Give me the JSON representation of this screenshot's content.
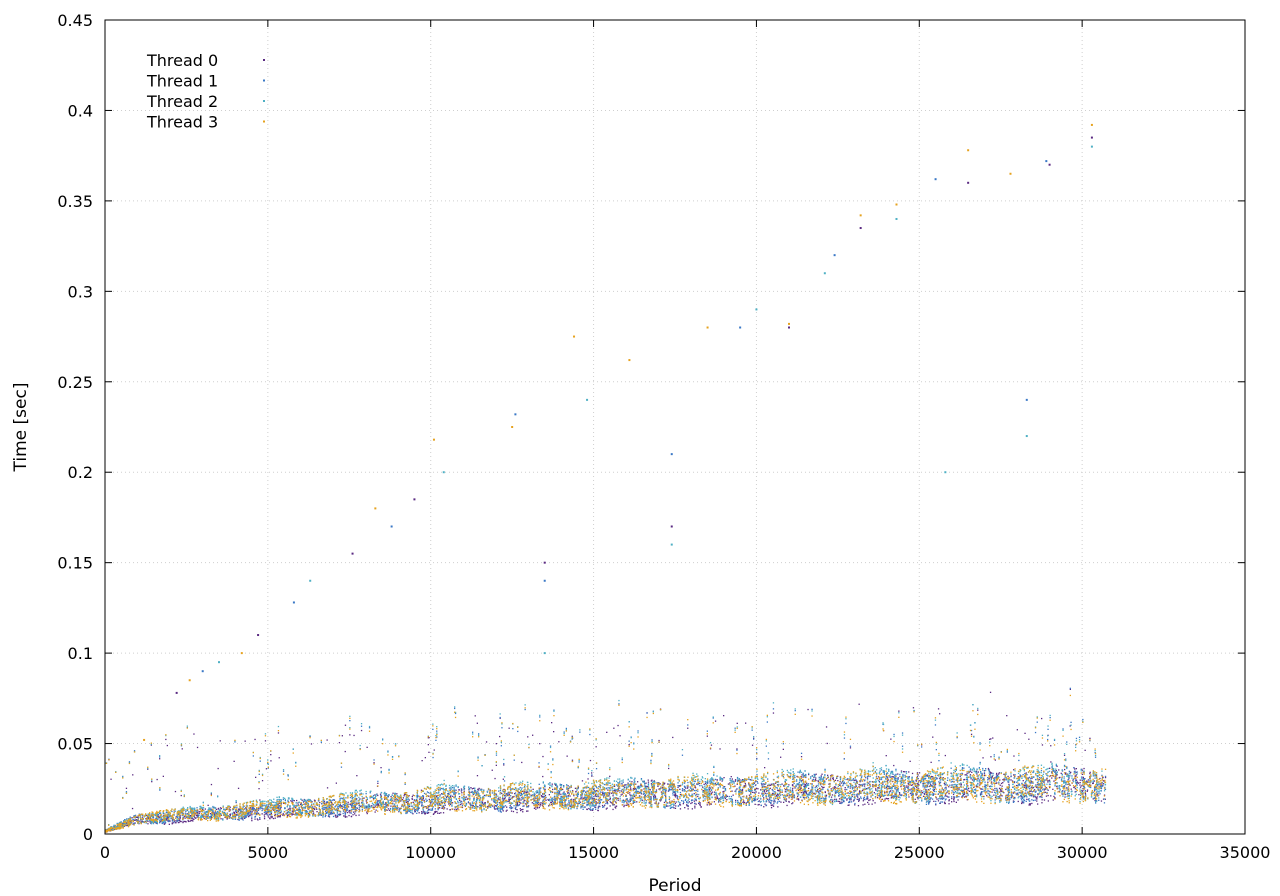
{
  "chart_data": {
    "type": "scatter",
    "title": "",
    "xlabel": "Period",
    "ylabel": "Time [sec]",
    "xlim": [
      0,
      35000
    ],
    "ylim": [
      0,
      0.45
    ],
    "xticks": [
      0,
      5000,
      10000,
      15000,
      20000,
      25000,
      30000,
      35000
    ],
    "yticks": [
      0,
      0.05,
      0.1,
      0.15,
      0.2,
      0.25,
      0.3,
      0.35,
      0.4,
      0.45
    ],
    "xtick_labels": [
      "0",
      "5000",
      "10000",
      "15000",
      "20000",
      "25000",
      "30000",
      "35000"
    ],
    "ytick_labels": [
      "0",
      "0.05",
      "0.1",
      "0.15",
      "0.2",
      "0.25",
      "0.3",
      "0.35",
      "0.4",
      "0.45"
    ],
    "grid": true,
    "legend_position": "top-left",
    "data_extent_x": [
      0,
      30700
    ],
    "series": [
      {
        "name": "Thread 0",
        "color": "#5a2a82",
        "trend": [
          [
            0,
            0.002
          ],
          [
            1000,
            0.008
          ],
          [
            5000,
            0.013
          ],
          [
            10000,
            0.018
          ],
          [
            15000,
            0.021
          ],
          [
            20000,
            0.024
          ],
          [
            25000,
            0.026
          ],
          [
            30700,
            0.027
          ]
        ],
        "outliers": [
          [
            2200,
            0.078
          ],
          [
            4700,
            0.11
          ],
          [
            7600,
            0.155
          ],
          [
            9500,
            0.185
          ],
          [
            13500,
            0.15
          ],
          [
            17400,
            0.17
          ],
          [
            21000,
            0.28
          ],
          [
            23200,
            0.335
          ],
          [
            26500,
            0.36
          ],
          [
            29000,
            0.37
          ],
          [
            30300,
            0.385
          ]
        ]
      },
      {
        "name": "Thread 1",
        "color": "#3a78c6",
        "trend": [
          [
            0,
            0.002
          ],
          [
            1000,
            0.009
          ],
          [
            5000,
            0.014
          ],
          [
            10000,
            0.019
          ],
          [
            15000,
            0.022
          ],
          [
            20000,
            0.025
          ],
          [
            25000,
            0.027
          ],
          [
            30700,
            0.028
          ]
        ],
        "outliers": [
          [
            3000,
            0.09
          ],
          [
            5800,
            0.128
          ],
          [
            8800,
            0.17
          ],
          [
            12600,
            0.232
          ],
          [
            13500,
            0.14
          ],
          [
            17400,
            0.21
          ],
          [
            19500,
            0.28
          ],
          [
            22400,
            0.32
          ],
          [
            25500,
            0.362
          ],
          [
            28300,
            0.24
          ],
          [
            28900,
            0.372
          ]
        ]
      },
      {
        "name": "Thread 2",
        "color": "#4fb0c4",
        "trend": [
          [
            0,
            0.002
          ],
          [
            1000,
            0.009
          ],
          [
            5000,
            0.015
          ],
          [
            10000,
            0.02
          ],
          [
            15000,
            0.023
          ],
          [
            20000,
            0.026
          ],
          [
            25000,
            0.028
          ],
          [
            30700,
            0.029
          ]
        ],
        "outliers": [
          [
            3500,
            0.095
          ],
          [
            6300,
            0.14
          ],
          [
            10400,
            0.2
          ],
          [
            13500,
            0.1
          ],
          [
            14800,
            0.24
          ],
          [
            17400,
            0.16
          ],
          [
            20000,
            0.29
          ],
          [
            22100,
            0.31
          ],
          [
            24300,
            0.34
          ],
          [
            25800,
            0.2
          ],
          [
            28300,
            0.22
          ],
          [
            30300,
            0.38
          ]
        ]
      },
      {
        "name": "Thread 3",
        "color": "#e6a21e",
        "trend": [
          [
            0,
            0.002
          ],
          [
            1000,
            0.009
          ],
          [
            5000,
            0.014
          ],
          [
            10000,
            0.019
          ],
          [
            15000,
            0.022
          ],
          [
            20000,
            0.025
          ],
          [
            25000,
            0.027
          ],
          [
            30700,
            0.028
          ]
        ],
        "outliers": [
          [
            1200,
            0.052
          ],
          [
            2600,
            0.085
          ],
          [
            4200,
            0.1
          ],
          [
            8300,
            0.18
          ],
          [
            10100,
            0.218
          ],
          [
            12500,
            0.225
          ],
          [
            14400,
            0.275
          ],
          [
            16100,
            0.262
          ],
          [
            18500,
            0.28
          ],
          [
            21000,
            0.282
          ],
          [
            23200,
            0.342
          ],
          [
            24300,
            0.348
          ],
          [
            26500,
            0.378
          ],
          [
            27800,
            0.365
          ],
          [
            30300,
            0.392
          ]
        ]
      }
    ]
  }
}
